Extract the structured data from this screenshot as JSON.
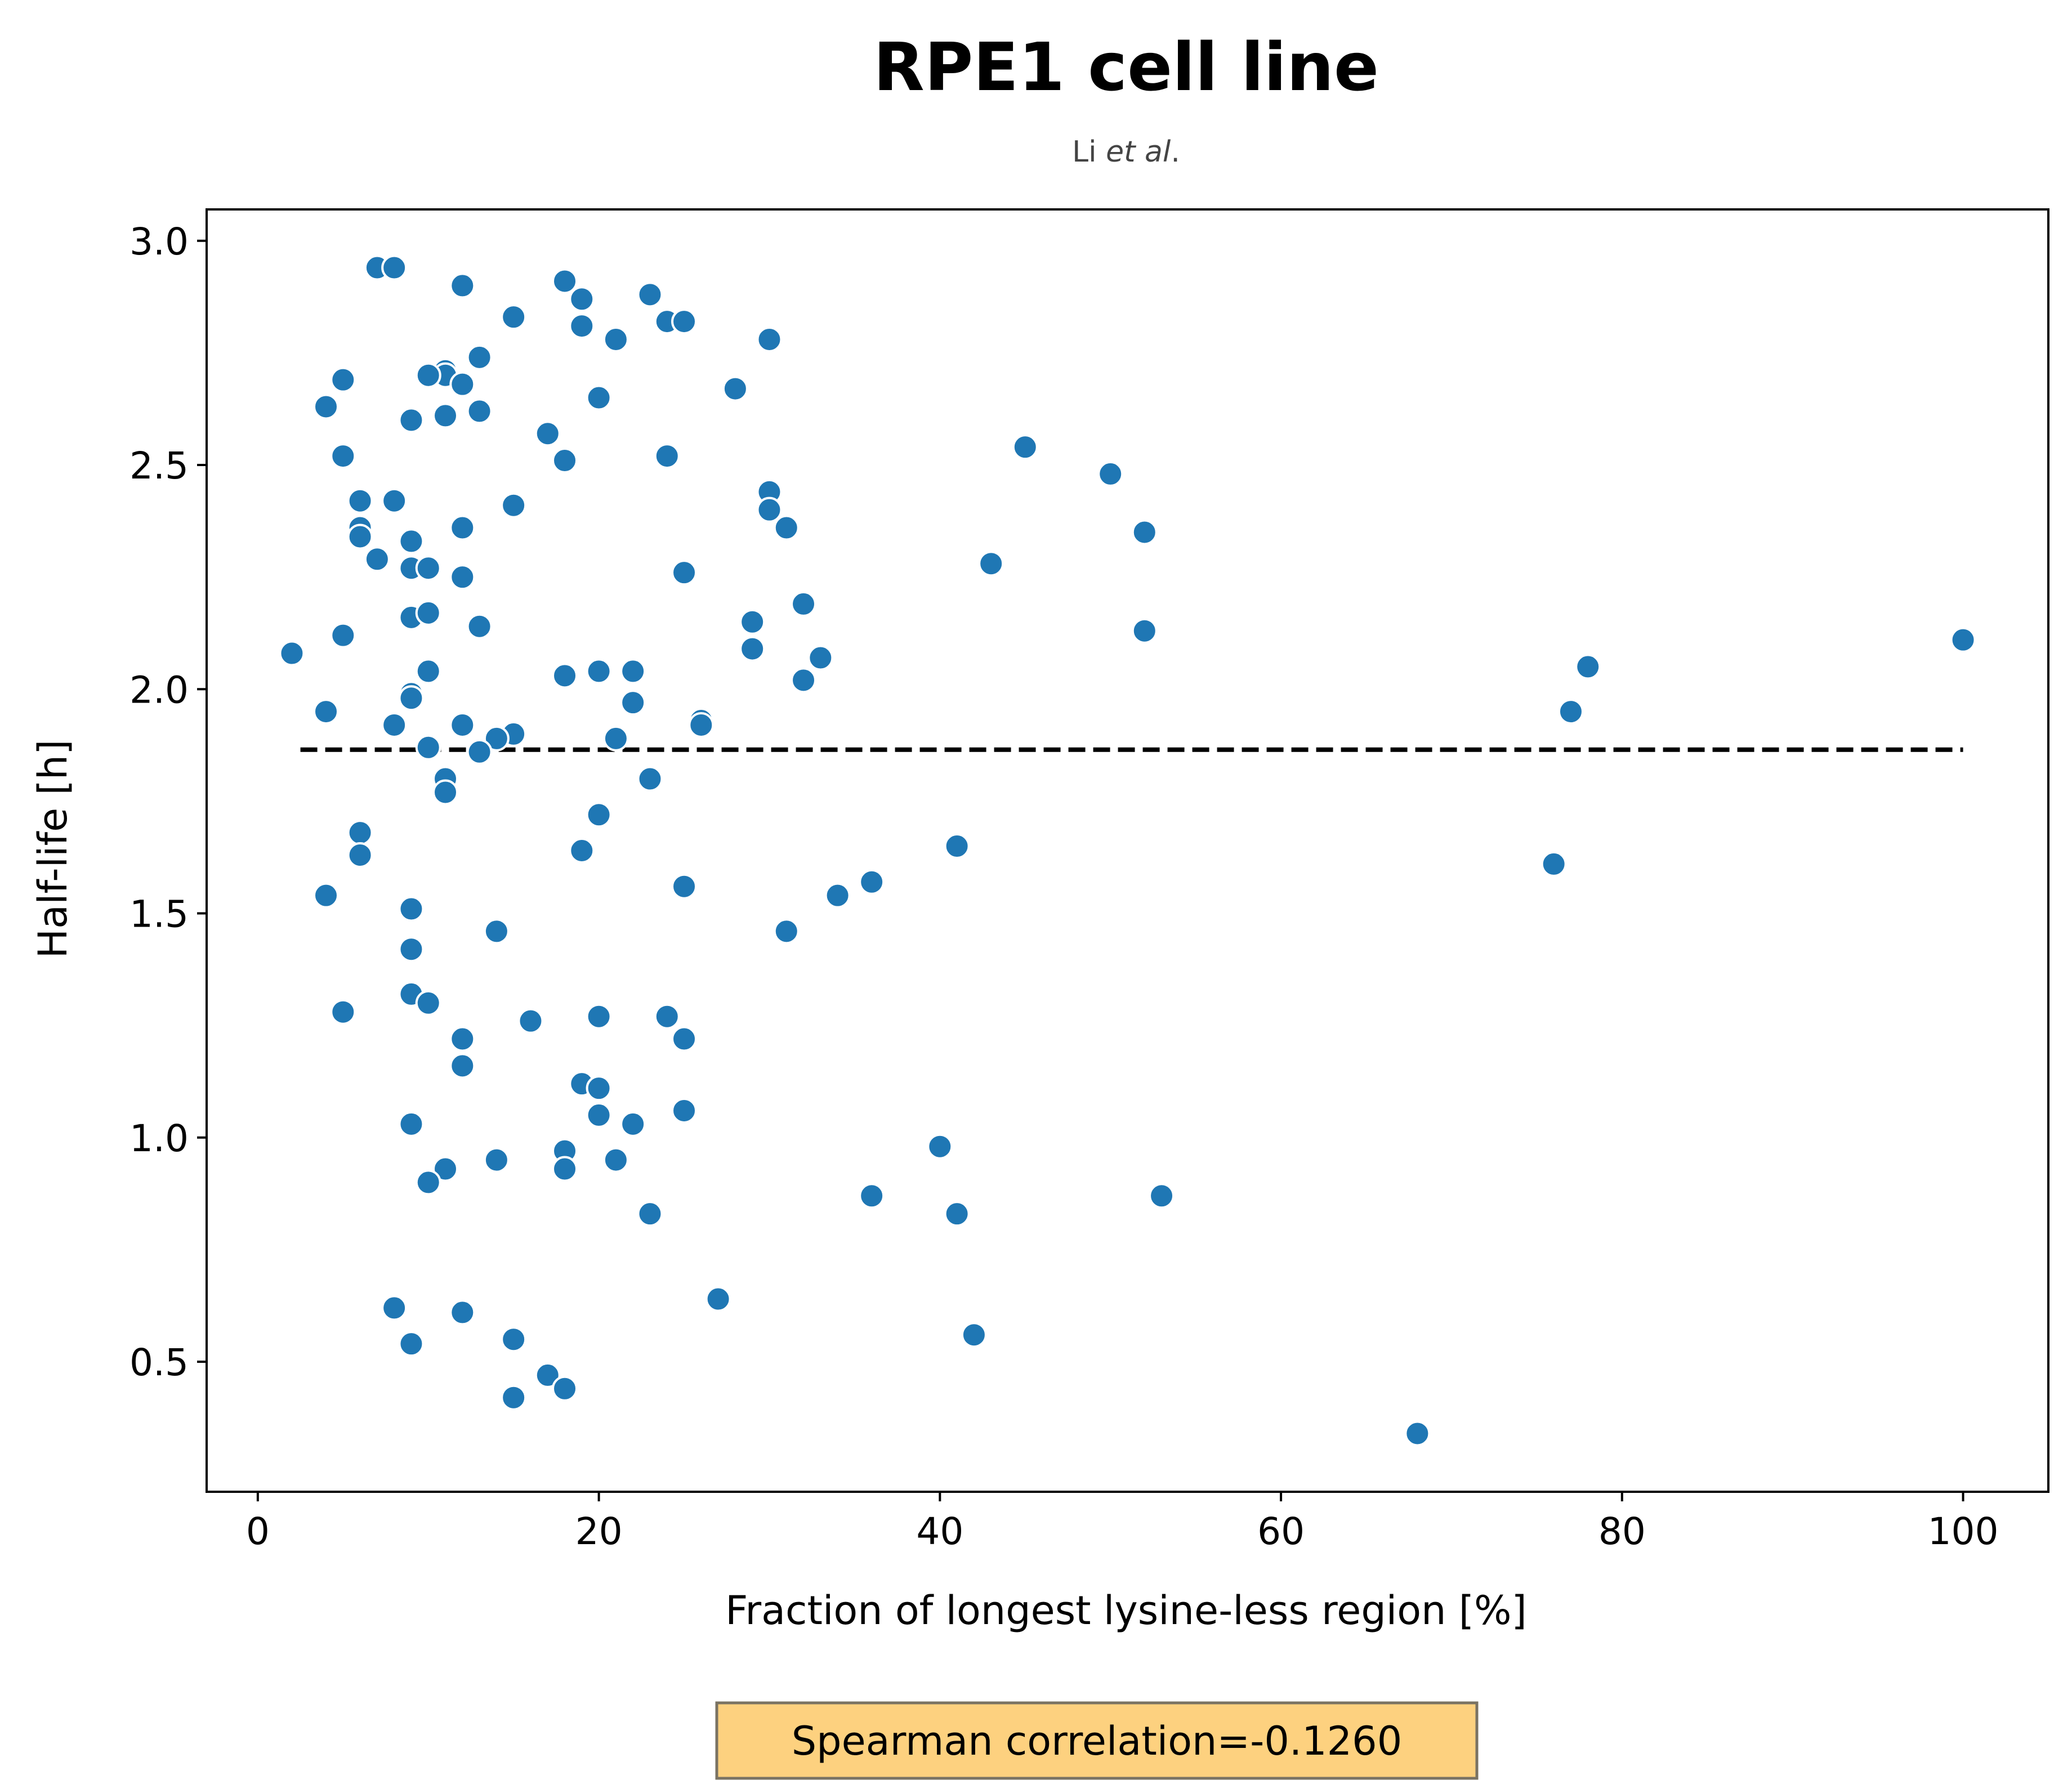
{
  "chart_data": {
    "type": "scatter",
    "title": "RPE1 cell line",
    "subtitle_prefix": "Li ",
    "subtitle_italic": "et al",
    "subtitle_suffix": ".",
    "xlabel": "Fraction of longest lysine-less region [%]",
    "ylabel": "Half-life [h]",
    "xlim": [
      -3,
      105
    ],
    "ylim": [
      0.21,
      3.07
    ],
    "xticks": [
      0,
      20,
      40,
      60,
      80,
      100
    ],
    "yticks": [
      0.5,
      1.0,
      1.5,
      2.0,
      2.5,
      3.0
    ],
    "xtick_labels": [
      "0",
      "20",
      "40",
      "60",
      "80",
      "100"
    ],
    "ytick_labels": [
      "0.5",
      "1.0",
      "1.5",
      "2.0",
      "2.5",
      "3.0"
    ],
    "grid": false,
    "point_color": "#1f77b4",
    "trend_line": {
      "style": "dashed",
      "color": "#000000",
      "x": [
        2.5,
        100
      ],
      "y": [
        1.865,
        1.865
      ]
    },
    "annotation": {
      "text": "Spearman correlation=-0.1260",
      "background": "#fdd17f",
      "border": "#7a7363"
    },
    "points": [
      [
        7,
        2.94
      ],
      [
        8,
        2.94
      ],
      [
        12,
        2.9
      ],
      [
        18,
        2.91
      ],
      [
        19,
        2.87
      ],
      [
        23,
        2.88
      ],
      [
        15,
        2.83
      ],
      [
        19,
        2.81
      ],
      [
        24,
        2.82
      ],
      [
        25,
        2.82
      ],
      [
        21,
        2.78
      ],
      [
        30,
        2.78
      ],
      [
        13,
        2.74
      ],
      [
        11,
        2.71
      ],
      [
        11,
        2.7
      ],
      [
        10,
        2.7
      ],
      [
        12,
        2.68
      ],
      [
        5,
        2.69
      ],
      [
        28,
        2.67
      ],
      [
        20,
        2.65
      ],
      [
        4,
        2.63
      ],
      [
        13,
        2.62
      ],
      [
        11,
        2.61
      ],
      [
        9,
        2.6
      ],
      [
        17,
        2.57
      ],
      [
        45,
        2.54
      ],
      [
        5,
        2.52
      ],
      [
        24,
        2.52
      ],
      [
        18,
        2.51
      ],
      [
        50,
        2.48
      ],
      [
        30,
        2.44
      ],
      [
        6,
        2.42
      ],
      [
        8,
        2.42
      ],
      [
        15,
        2.41
      ],
      [
        30,
        2.4
      ],
      [
        31,
        2.36
      ],
      [
        6,
        2.36
      ],
      [
        12,
        2.36
      ],
      [
        52,
        2.35
      ],
      [
        6,
        2.34
      ],
      [
        9,
        2.33
      ],
      [
        7,
        2.29
      ],
      [
        43,
        2.28
      ],
      [
        9,
        2.27
      ],
      [
        10,
        2.27
      ],
      [
        25,
        2.26
      ],
      [
        12,
        2.25
      ],
      [
        32,
        2.19
      ],
      [
        9,
        2.16
      ],
      [
        10,
        2.17
      ],
      [
        29,
        2.15
      ],
      [
        13,
        2.14
      ],
      [
        52,
        2.13
      ],
      [
        5,
        2.12
      ],
      [
        100,
        2.11
      ],
      [
        29,
        2.09
      ],
      [
        2,
        2.08
      ],
      [
        33,
        2.07
      ],
      [
        78,
        2.05
      ],
      [
        10,
        2.04
      ],
      [
        18,
        2.03
      ],
      [
        20,
        2.04
      ],
      [
        22,
        2.04
      ],
      [
        32,
        2.02
      ],
      [
        9,
        1.99
      ],
      [
        9,
        1.98
      ],
      [
        22,
        1.97
      ],
      [
        4,
        1.95
      ],
      [
        77,
        1.95
      ],
      [
        26,
        1.93
      ],
      [
        26,
        1.92
      ],
      [
        8,
        1.92
      ],
      [
        12,
        1.92
      ],
      [
        15,
        1.9
      ],
      [
        14,
        1.89
      ],
      [
        21,
        1.89
      ],
      [
        10,
        1.87
      ],
      [
        13,
        1.86
      ],
      [
        11,
        1.8
      ],
      [
        23,
        1.8
      ],
      [
        11,
        1.77
      ],
      [
        20,
        1.72
      ],
      [
        6,
        1.68
      ],
      [
        41,
        1.65
      ],
      [
        19,
        1.64
      ],
      [
        6,
        1.63
      ],
      [
        76,
        1.61
      ],
      [
        36,
        1.57
      ],
      [
        25,
        1.56
      ],
      [
        4,
        1.54
      ],
      [
        34,
        1.54
      ],
      [
        9,
        1.51
      ],
      [
        31,
        1.46
      ],
      [
        14,
        1.46
      ],
      [
        9,
        1.42
      ],
      [
        9,
        1.32
      ],
      [
        10,
        1.3
      ],
      [
        5,
        1.28
      ],
      [
        20,
        1.27
      ],
      [
        24,
        1.27
      ],
      [
        16,
        1.26
      ],
      [
        12,
        1.22
      ],
      [
        25,
        1.22
      ],
      [
        12,
        1.16
      ],
      [
        19,
        1.12
      ],
      [
        20,
        1.11
      ],
      [
        25,
        1.06
      ],
      [
        20,
        1.05
      ],
      [
        9,
        1.03
      ],
      [
        22,
        1.03
      ],
      [
        40,
        0.98
      ],
      [
        18,
        0.97
      ],
      [
        14,
        0.95
      ],
      [
        21,
        0.95
      ],
      [
        18,
        0.93
      ],
      [
        11,
        0.93
      ],
      [
        10,
        0.9
      ],
      [
        36,
        0.87
      ],
      [
        53,
        0.87
      ],
      [
        23,
        0.83
      ],
      [
        41,
        0.83
      ],
      [
        27,
        0.64
      ],
      [
        8,
        0.62
      ],
      [
        12,
        0.61
      ],
      [
        42,
        0.56
      ],
      [
        15,
        0.55
      ],
      [
        9,
        0.54
      ],
      [
        17,
        0.47
      ],
      [
        18,
        0.44
      ],
      [
        15,
        0.42
      ],
      [
        68,
        0.34
      ]
    ]
  }
}
